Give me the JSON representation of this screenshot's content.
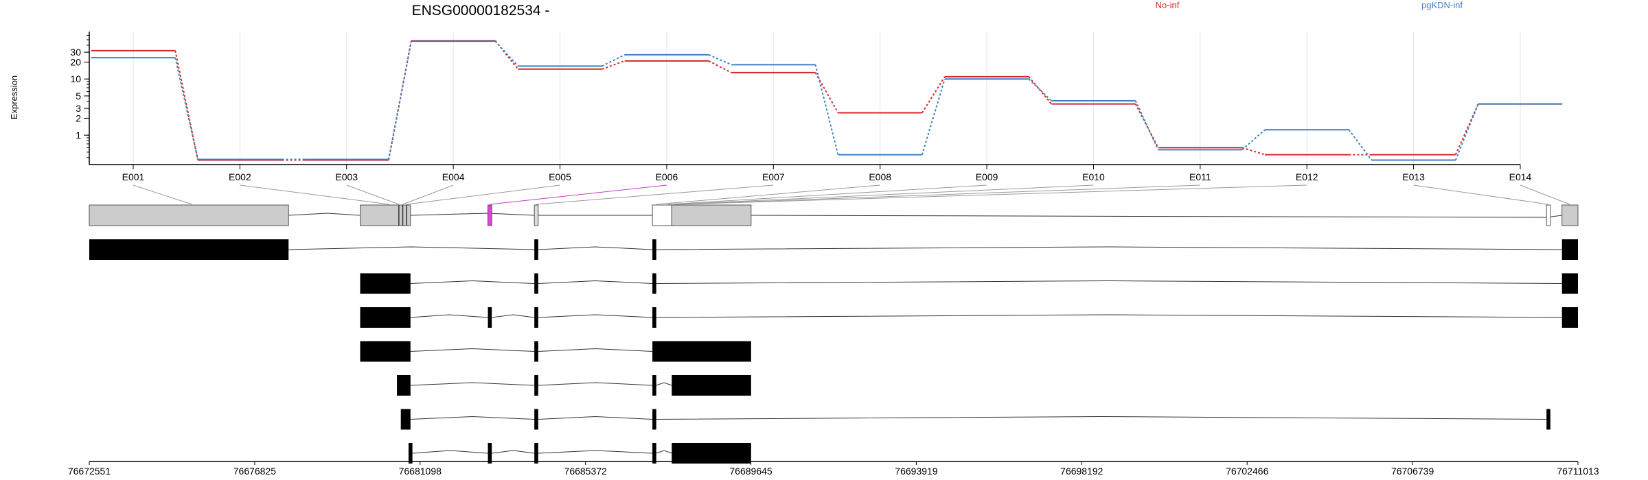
{
  "chart_data": {
    "type": "line",
    "title": "ENSG00000182534 -",
    "ylabel": "Expression",
    "yscale": "log",
    "ylim": [
      0.3,
      70
    ],
    "y_ticks": [
      1,
      2,
      3,
      5,
      10,
      20,
      30
    ],
    "categories": [
      "E001",
      "E002",
      "E003",
      "E004",
      "E005",
      "E006",
      "E007",
      "E008",
      "E009",
      "E010",
      "E011",
      "E012",
      "E013",
      "E014"
    ],
    "series": [
      {
        "name": "No-inf",
        "color": "#d62728",
        "values": [
          32,
          0.36,
          0.36,
          48,
          15,
          21,
          13,
          2.5,
          11,
          3.6,
          0.6,
          0.45,
          0.45,
          3.6
        ]
      },
      {
        "name": "pgKDN-inf",
        "color": "#3d7fc0",
        "values": [
          24,
          0.37,
          0.37,
          47,
          17,
          27,
          18,
          0.45,
          10,
          4.1,
          0.55,
          1.25,
          0.36,
          3.6
        ]
      }
    ],
    "genome_ticks": [
      "76672551",
      "76676825",
      "76681098",
      "76685372",
      "76689645",
      "76693919",
      "76698192",
      "76702466",
      "76706739",
      "76711013"
    ],
    "gene_model": {
      "exons": [
        {
          "name": "E001",
          "start": 76672551,
          "end": 76677700
        },
        {
          "name": "E002",
          "start": 76679550,
          "end": 76680550
        },
        {
          "name": "E003",
          "start": 76680550,
          "end": 76680650
        },
        {
          "name": "E004",
          "start": 76680650,
          "end": 76680850
        },
        {
          "name": "E005",
          "start": 76682850,
          "end": 76682950,
          "highlight": true
        },
        {
          "name": "E006",
          "start": 76684050,
          "end": 76684150
        },
        {
          "name": "E007",
          "start": 76687100,
          "end": 76687600
        },
        {
          "name": "E008",
          "start": 76687600,
          "end": 76689650
        },
        {
          "name": "E009",
          "start": 76687100,
          "end": 76687600
        },
        {
          "name": "E010",
          "start": 76687600,
          "end": 76689650
        },
        {
          "name": "E011",
          "start": 76687600,
          "end": 76689650
        },
        {
          "name": "E012",
          "start": 76687600,
          "end": 76689650
        },
        {
          "name": "E013",
          "start": 76710200,
          "end": 76710300
        },
        {
          "name": "E014",
          "start": 76710600,
          "end": 76711013
        }
      ],
      "transcripts": [
        [
          [
            76672551,
            76677700
          ],
          [
            76684050,
            76684150
          ],
          [
            76687100,
            76687200
          ],
          [
            76710600,
            76711013
          ]
        ],
        [
          [
            76679550,
            76680850
          ],
          [
            76684050,
            76684150
          ],
          [
            76687100,
            76687200
          ],
          [
            76710600,
            76711013
          ]
        ],
        [
          [
            76679550,
            76680850
          ],
          [
            76682850,
            76682950
          ],
          [
            76684050,
            76684150
          ],
          [
            76687100,
            76687200
          ],
          [
            76710600,
            76711013
          ]
        ],
        [
          [
            76679550,
            76680850
          ],
          [
            76684050,
            76684150
          ],
          [
            76687100,
            76689650
          ]
        ],
        [
          [
            76680500,
            76680850
          ],
          [
            76684050,
            76684150
          ],
          [
            76687100,
            76687200
          ],
          [
            76687600,
            76689650
          ]
        ],
        [
          [
            76680600,
            76680850
          ],
          [
            76684050,
            76684150
          ],
          [
            76687100,
            76687200
          ],
          [
            76710200,
            76710300
          ]
        ],
        [
          [
            76680800,
            76680900
          ],
          [
            76682850,
            76682950
          ],
          [
            76684050,
            76684150
          ],
          [
            76687100,
            76687200
          ],
          [
            76687600,
            76689650
          ]
        ]
      ]
    }
  }
}
